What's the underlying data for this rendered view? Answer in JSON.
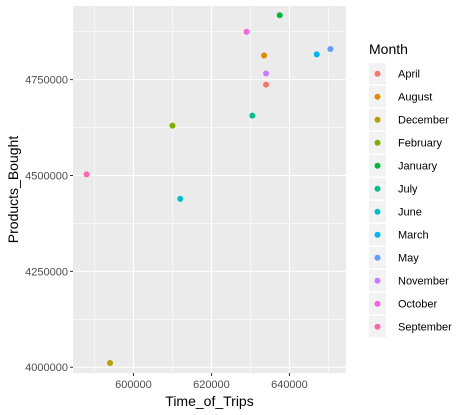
{
  "chart_data": {
    "type": "scatter",
    "xlabel": "Time_of_Trips",
    "ylabel": "Products_Bought",
    "xlim": [
      584500,
      654500
    ],
    "ylim": [
      3985000,
      4942000
    ],
    "x_ticks": [
      600000,
      620000,
      640000
    ],
    "x_tick_labels": [
      "600000",
      "620000",
      "640000"
    ],
    "y_ticks": [
      4000000,
      4250000,
      4500000,
      4750000
    ],
    "y_tick_labels": [
      "4000000",
      "4250000",
      "4500000",
      "4750000"
    ],
    "grid": true,
    "legend": {
      "title": "Month",
      "position": "right",
      "entries": [
        {
          "label": "April",
          "color": "#F8766D"
        },
        {
          "label": "August",
          "color": "#DE8C00"
        },
        {
          "label": "December",
          "color": "#B79F00"
        },
        {
          "label": "February",
          "color": "#7CAE00"
        },
        {
          "label": "January",
          "color": "#00BA38"
        },
        {
          "label": "July",
          "color": "#00C08B"
        },
        {
          "label": "June",
          "color": "#00BFC4"
        },
        {
          "label": "March",
          "color": "#00B4F0"
        },
        {
          "label": "May",
          "color": "#619CFF"
        },
        {
          "label": "November",
          "color": "#C77CFF"
        },
        {
          "label": "October",
          "color": "#F564E3"
        },
        {
          "label": "September",
          "color": "#FF64B0"
        }
      ]
    },
    "points": [
      {
        "series": "April",
        "x": 634000,
        "y": 4737000
      },
      {
        "series": "August",
        "x": 633500,
        "y": 4813000
      },
      {
        "series": "December",
        "x": 594000,
        "y": 4011000
      },
      {
        "series": "February",
        "x": 610000,
        "y": 4630000
      },
      {
        "series": "January",
        "x": 637500,
        "y": 4918000
      },
      {
        "series": "July",
        "x": 630500,
        "y": 4656000
      },
      {
        "series": "June",
        "x": 612000,
        "y": 4439000
      },
      {
        "series": "March",
        "x": 647000,
        "y": 4816000
      },
      {
        "series": "May",
        "x": 650500,
        "y": 4830000
      },
      {
        "series": "November",
        "x": 634000,
        "y": 4766000
      },
      {
        "series": "October",
        "x": 629000,
        "y": 4875000
      },
      {
        "series": "September",
        "x": 588000,
        "y": 4503000
      }
    ]
  }
}
